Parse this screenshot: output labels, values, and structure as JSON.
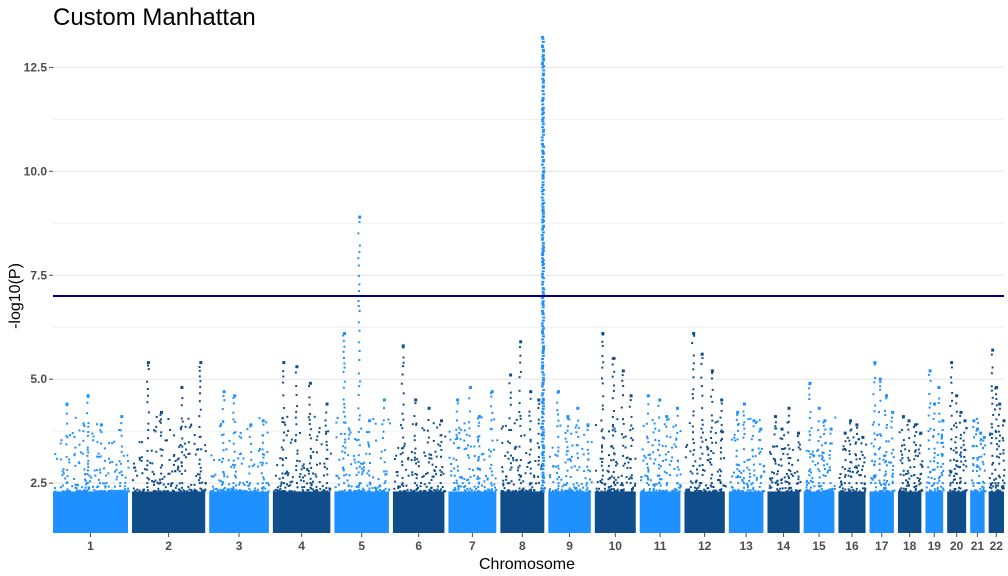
{
  "chart_data": {
    "type": "scatter",
    "subtype": "manhattan",
    "title": "Custom Manhattan",
    "xlabel": "Chromosome",
    "ylabel": "-log10(P)",
    "ylim": [
      1.3,
      13.4
    ],
    "yticks": [
      2.5,
      5.0,
      7.5,
      10.0,
      12.5
    ],
    "ytick_labels": [
      "2.5",
      "5.0",
      "7.5",
      "10.0",
      "12.5"
    ],
    "threshold": {
      "value": 7.0,
      "color": "#00008B"
    },
    "series_colors": [
      "#1E90FF",
      "#104E8B"
    ],
    "grid": true,
    "chromosomes": [
      {
        "label": "1",
        "length": 249,
        "peaks": [
          4.4,
          4.6,
          3.9,
          4.1
        ]
      },
      {
        "label": "",
        "length": 0,
        "peaks": []
      },
      {
        "label": "2",
        "length": 243,
        "peaks": [
          5.4,
          4.2,
          4.8,
          5.4
        ]
      },
      {
        "label": "3",
        "length": 198,
        "peaks": [
          4.7,
          4.6,
          3.9,
          4.0
        ]
      },
      {
        "label": "4",
        "length": 191,
        "peaks": [
          5.4,
          5.3,
          4.9,
          4.4
        ]
      },
      {
        "label": "5",
        "length": 181,
        "peaks": [
          6.1,
          8.9,
          4.0,
          4.5
        ]
      },
      {
        "label": "6",
        "length": 171,
        "peaks": [
          5.8,
          4.5,
          4.3,
          4.0
        ]
      },
      {
        "label": "7",
        "length": 159,
        "peaks": [
          4.5,
          4.8,
          4.1,
          4.7
        ]
      },
      {
        "label": "8",
        "length": 146,
        "peaks": [
          5.1,
          5.9,
          4.7,
          4.5
        ]
      },
      {
        "label": "9",
        "length": 141,
        "peaks": [
          4.7,
          4.1,
          4.3,
          3.9
        ]
      },
      {
        "label": "10",
        "length": 136,
        "peaks": [
          6.1,
          5.5,
          5.2,
          4.6
        ]
      },
      {
        "label": "11",
        "length": 135,
        "peaks": [
          4.6,
          4.5,
          4.1,
          4.3
        ]
      },
      {
        "label": "12",
        "length": 134,
        "peaks": [
          6.1,
          5.6,
          5.2,
          4.5
        ]
      },
      {
        "label": "13",
        "length": 115,
        "peaks": [
          4.2,
          4.4,
          4.0,
          3.8
        ]
      },
      {
        "label": "14",
        "length": 107,
        "peaks": [
          4.1,
          3.8,
          4.3,
          3.7
        ]
      },
      {
        "label": "15",
        "length": 102,
        "peaks": [
          4.9,
          4.3,
          4.0,
          3.8
        ]
      },
      {
        "label": "16",
        "length": 90,
        "peaks": [
          3.7,
          4.0,
          3.9,
          3.6
        ]
      },
      {
        "label": "17",
        "length": 81,
        "peaks": [
          5.4,
          5.0,
          4.6,
          4.2
        ]
      },
      {
        "label": "18",
        "length": 78,
        "peaks": [
          4.1,
          4.0,
          3.9,
          3.7
        ]
      },
      {
        "label": "19",
        "length": 59,
        "peaks": [
          5.2,
          4.4,
          4.8,
          4.0
        ]
      },
      {
        "label": "20",
        "length": 63,
        "peaks": [
          5.4,
          4.6,
          4.2,
          4.0
        ]
      },
      {
        "label": "21",
        "length": 48,
        "peaks": [
          4.0,
          3.8,
          3.7,
          3.6
        ]
      },
      {
        "label": "22",
        "length": 51,
        "peaks": [
          5.7,
          4.8,
          4.4,
          4.0
        ]
      }
    ],
    "highlight_locus": {
      "chromosome": "8",
      "relative_position": 0.97,
      "max_value": 13.3,
      "color": "#1E90FF"
    }
  }
}
